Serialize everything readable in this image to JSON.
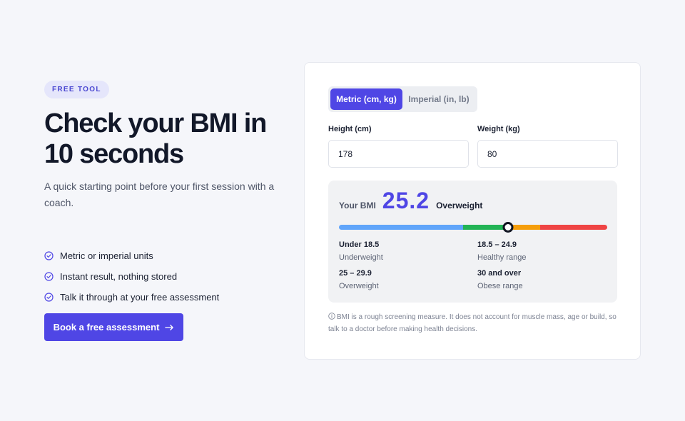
{
  "hero": {
    "badge": "FREE TOOL",
    "headline_line1": "Check your BMI in",
    "headline_line2": "10 seconds",
    "subtitle": "A quick starting point before your first session with a coach.",
    "features": [
      {
        "icon": "check-circle-icon",
        "text": "Metric or imperial units"
      },
      {
        "icon": "check-circle-icon",
        "text": "Instant result, nothing stored"
      },
      {
        "icon": "check-circle-icon",
        "text": "Talk it through at your free assessment"
      }
    ],
    "cta_label": "Book a free assessment",
    "cta_icon": "arrow-right-icon"
  },
  "calculator": {
    "units": {
      "metric_label": "Metric (cm, kg)",
      "imperial_label": "Imperial (in, lb)",
      "selected": "metric"
    },
    "height": {
      "label": "Height (cm)",
      "value": "178"
    },
    "weight": {
      "label": "Weight (kg)",
      "value": "80"
    },
    "result": {
      "label": "Your BMI",
      "value": "25.2",
      "category": "Overweight",
      "scale_position_fraction": 0.63
    },
    "ranges": [
      {
        "value": "Under 18.5",
        "label": "Underweight"
      },
      {
        "value": "18.5 – 24.9",
        "label": "Healthy range"
      },
      {
        "value": "25 – 29.9",
        "label": "Overweight"
      },
      {
        "value": "30 and over",
        "label": "Obese range"
      }
    ],
    "disclaimer": "BMI is a rough screening measure. It does not account for muscle mass, age or build, so talk to a doctor before making health decisions.",
    "disclaimer_icon": "info-icon"
  },
  "colors": {
    "accent": "#4f46e5",
    "underweight": "#60a5fa",
    "healthy": "#22b455",
    "overweight": "#f59e0b",
    "obese": "#ef4444"
  }
}
